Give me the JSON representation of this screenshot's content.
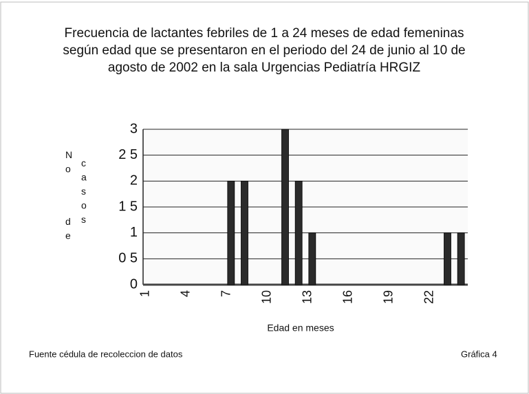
{
  "chart_data": {
    "type": "bar",
    "title": "Frecuencia de lactantes febriles de 1  a 24 meses de edad femeninas según edad que se presentaron en el periodo del 24 de junio al 10 de agosto de 2002 en la sala Urgencias Pediatría HRGIZ",
    "x_label": "Edad en meses",
    "y_label": "No de casos",
    "categories": [
      1,
      null,
      null,
      4,
      null,
      null,
      7,
      null,
      null,
      10,
      null,
      null,
      13,
      null,
      null,
      16,
      null,
      null,
      19,
      null,
      null,
      22,
      null,
      null
    ],
    "values": [
      0,
      0,
      0,
      0,
      0,
      0,
      2,
      2,
      0,
      0,
      3,
      2,
      1,
      0,
      0,
      0,
      0,
      0,
      0,
      0,
      0,
      0,
      1,
      1
    ],
    "color": "#2b2b2b",
    "ylim": [
      0,
      3
    ],
    "yticks": [
      0,
      {
        "value": 0.5,
        "label": "0 5"
      },
      1,
      {
        "value": 1.5,
        "label": "1 5"
      },
      2,
      {
        "value": 2.5,
        "label": "2 5"
      },
      3
    ],
    "grid": true,
    "source": "Fuente  cédula de recoleccion de datos",
    "figure_label": "Gráfica 4"
  }
}
